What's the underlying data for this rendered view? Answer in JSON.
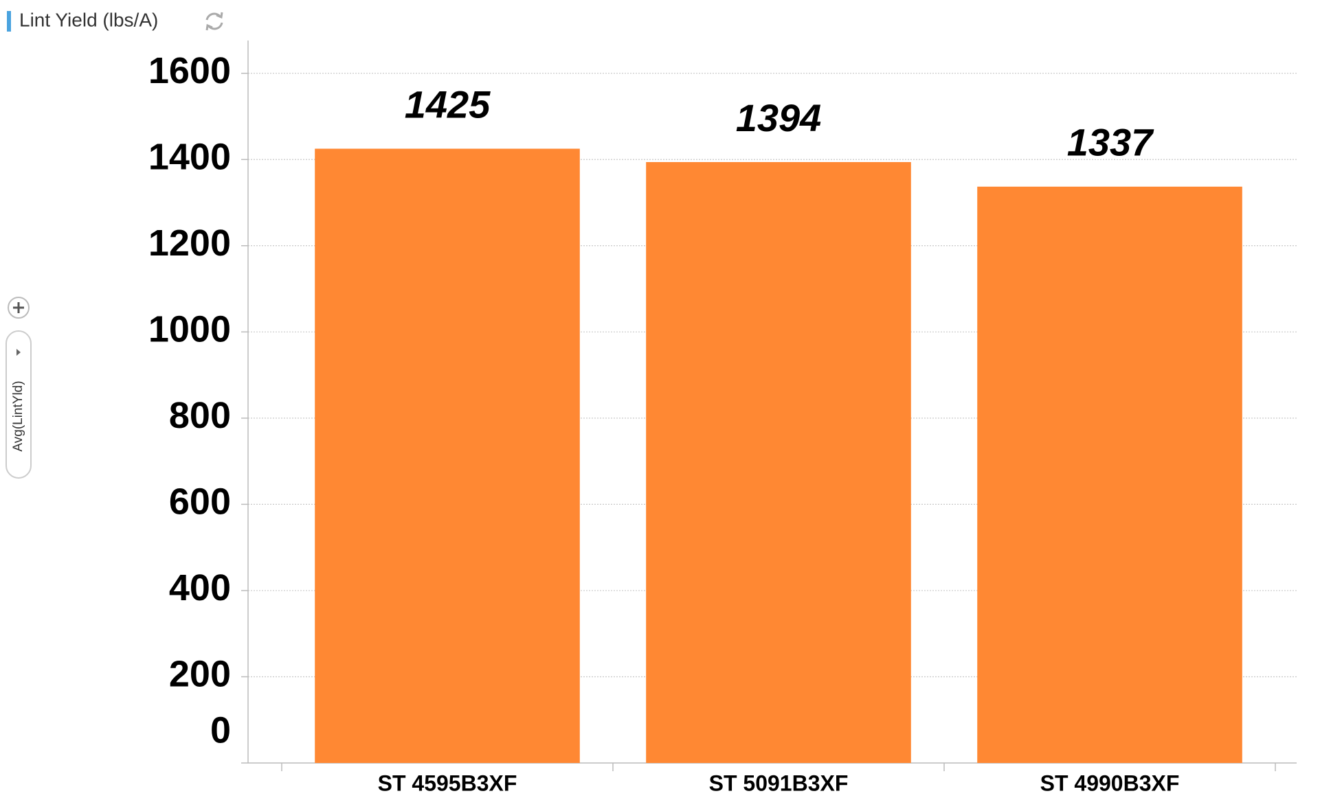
{
  "chart_data": {
    "type": "bar",
    "title": "Lint Yield (lbs/A)",
    "y_axis_label": "Avg(LintYld)",
    "categories": [
      "ST 4595B3XF",
      "ST 5091B3XF",
      "ST 4990B3XF"
    ],
    "values": [
      1425,
      1394,
      1337
    ],
    "color": "#ff8833",
    "ylim": [
      0,
      1676
    ],
    "yticks": [
      0,
      200,
      400,
      600,
      800,
      1000,
      1200,
      1400,
      1600
    ],
    "grid": true
  }
}
